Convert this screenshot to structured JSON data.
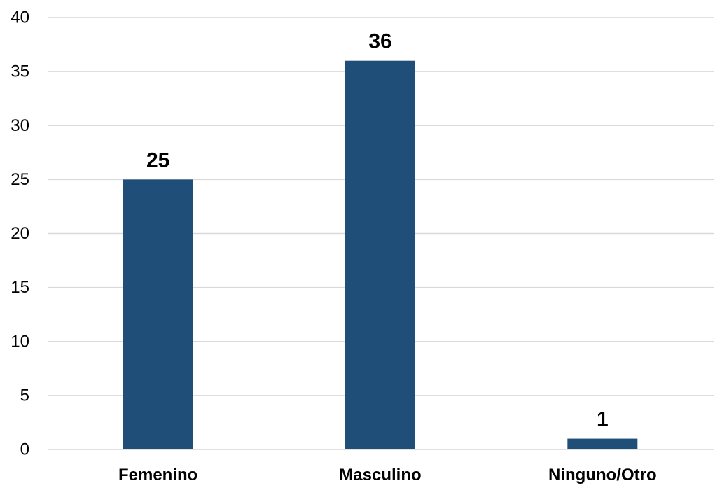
{
  "chart_data": {
    "type": "bar",
    "categories": [
      "Femenino",
      "Masculino",
      "Ninguno/Otro"
    ],
    "values": [
      25,
      36,
      1
    ],
    "data_labels": [
      "25",
      "36",
      "1"
    ],
    "title": "",
    "xlabel": "",
    "ylabel": "",
    "ylim": [
      0,
      40
    ],
    "yticks": [
      0,
      5,
      10,
      15,
      20,
      25,
      30,
      35,
      40
    ],
    "ytick_labels": [
      "0",
      "5",
      "10",
      "15",
      "20",
      "25",
      "30",
      "35",
      "40"
    ],
    "grid": true,
    "legend": "none",
    "colors": {
      "bar": "#1F4E79",
      "grid": "#D9D9D9",
      "axis": "#D9D9D9",
      "text": "#000000"
    }
  }
}
